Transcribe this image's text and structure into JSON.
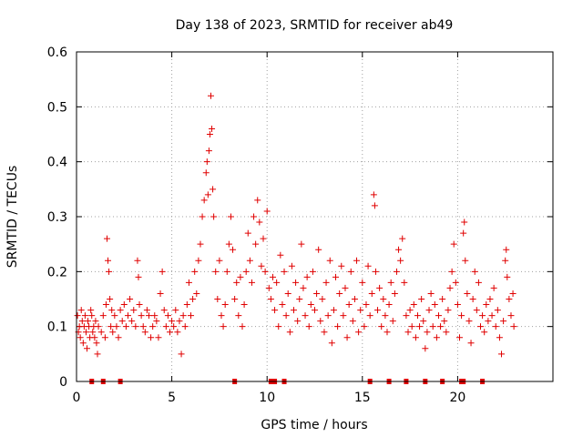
{
  "chart_data": {
    "type": "scatter",
    "title": "Day 138 of 2023, SRMTID for receiver ab49",
    "xlabel": "GPS time / hours",
    "ylabel": "SRMTID / TECUs",
    "xlim": [
      0,
      25
    ],
    "ylim": [
      0,
      0.6
    ],
    "xticks": [
      0,
      5,
      10,
      15,
      20
    ],
    "xtick_labels": [
      "0",
      "5",
      "10",
      "15",
      "20"
    ],
    "yticks": [
      0,
      0.1,
      0.2,
      0.3,
      0.4,
      0.5,
      0.6
    ],
    "ytick_labels": [
      "0",
      "0.1",
      "0.2",
      "0.3",
      "0.4",
      "0.5",
      "0.6"
    ],
    "grid": true,
    "marker": "+",
    "color": "#e00000",
    "series": [
      {
        "name": "SRMTID",
        "points": [
          [
            0.05,
            0.12
          ],
          [
            0.1,
            0.09
          ],
          [
            0.15,
            0.1
          ],
          [
            0.2,
            0.08
          ],
          [
            0.25,
            0.13
          ],
          [
            0.3,
            0.11
          ],
          [
            0.35,
            0.07
          ],
          [
            0.4,
            0.1
          ],
          [
            0.45,
            0.12
          ],
          [
            0.5,
            0.09
          ],
          [
            0.55,
            0.06
          ],
          [
            0.6,
            0.11
          ],
          [
            0.65,
            0.1
          ],
          [
            0.7,
            0.08
          ],
          [
            0.75,
            0.13
          ],
          [
            0.8,
            0.12
          ],
          [
            0.85,
            0.09
          ],
          [
            0.9,
            0.1
          ],
          [
            0.95,
            0.08
          ],
          [
            1.0,
            0.11
          ],
          [
            1.05,
            0.07
          ],
          [
            1.1,
            0.05
          ],
          [
            1.15,
            0.1
          ],
          [
            1.3,
            0.09
          ],
          [
            1.4,
            0.12
          ],
          [
            1.5,
            0.08
          ],
          [
            1.55,
            0.14
          ],
          [
            1.6,
            0.26
          ],
          [
            1.65,
            0.22
          ],
          [
            1.7,
            0.2
          ],
          [
            1.75,
            0.15
          ],
          [
            1.8,
            0.1
          ],
          [
            1.85,
            0.13
          ],
          [
            1.9,
            0.09
          ],
          [
            2.0,
            0.12
          ],
          [
            2.1,
            0.1
          ],
          [
            2.2,
            0.08
          ],
          [
            2.3,
            0.13
          ],
          [
            2.4,
            0.11
          ],
          [
            2.5,
            0.14
          ],
          [
            2.6,
            0.1
          ],
          [
            2.7,
            0.12
          ],
          [
            2.8,
            0.15
          ],
          [
            2.9,
            0.11
          ],
          [
            3.0,
            0.13
          ],
          [
            3.1,
            0.1
          ],
          [
            3.2,
            0.22
          ],
          [
            3.25,
            0.19
          ],
          [
            3.3,
            0.14
          ],
          [
            3.4,
            0.12
          ],
          [
            3.5,
            0.1
          ],
          [
            3.6,
            0.09
          ],
          [
            3.7,
            0.13
          ],
          [
            3.8,
            0.12
          ],
          [
            3.9,
            0.08
          ],
          [
            4.0,
            0.1
          ],
          [
            4.1,
            0.12
          ],
          [
            4.2,
            0.11
          ],
          [
            4.3,
            0.08
          ],
          [
            4.4,
            0.16
          ],
          [
            4.5,
            0.2
          ],
          [
            4.6,
            0.13
          ],
          [
            4.7,
            0.1
          ],
          [
            4.8,
            0.12
          ],
          [
            4.9,
            0.09
          ],
          [
            5.0,
            0.11
          ],
          [
            5.1,
            0.1
          ],
          [
            5.2,
            0.13
          ],
          [
            5.3,
            0.09
          ],
          [
            5.4,
            0.11
          ],
          [
            5.5,
            0.05
          ],
          [
            5.6,
            0.12
          ],
          [
            5.7,
            0.1
          ],
          [
            5.8,
            0.14
          ],
          [
            5.9,
            0.18
          ],
          [
            6.0,
            0.12
          ],
          [
            6.1,
            0.15
          ],
          [
            6.2,
            0.2
          ],
          [
            6.3,
            0.16
          ],
          [
            6.4,
            0.22
          ],
          [
            6.5,
            0.25
          ],
          [
            6.6,
            0.3
          ],
          [
            6.7,
            0.33
          ],
          [
            6.8,
            0.38
          ],
          [
            6.85,
            0.4
          ],
          [
            6.9,
            0.34
          ],
          [
            6.95,
            0.42
          ],
          [
            7.0,
            0.45
          ],
          [
            7.05,
            0.52
          ],
          [
            7.1,
            0.46
          ],
          [
            7.15,
            0.35
          ],
          [
            7.2,
            0.3
          ],
          [
            7.3,
            0.2
          ],
          [
            7.4,
            0.15
          ],
          [
            7.5,
            0.22
          ],
          [
            7.6,
            0.12
          ],
          [
            7.7,
            0.1
          ],
          [
            7.8,
            0.14
          ],
          [
            7.9,
            0.2
          ],
          [
            8.0,
            0.25
          ],
          [
            8.1,
            0.3
          ],
          [
            8.2,
            0.24
          ],
          [
            8.3,
            0.15
          ],
          [
            8.4,
            0.18
          ],
          [
            8.5,
            0.12
          ],
          [
            8.6,
            0.19
          ],
          [
            8.7,
            0.1
          ],
          [
            8.8,
            0.14
          ],
          [
            8.9,
            0.2
          ],
          [
            9.0,
            0.27
          ],
          [
            9.1,
            0.22
          ],
          [
            9.2,
            0.18
          ],
          [
            9.3,
            0.3
          ],
          [
            9.4,
            0.25
          ],
          [
            9.5,
            0.33
          ],
          [
            9.6,
            0.29
          ],
          [
            9.7,
            0.21
          ],
          [
            9.8,
            0.26
          ],
          [
            9.9,
            0.2
          ],
          [
            10.0,
            0.31
          ],
          [
            10.1,
            0.17
          ],
          [
            10.2,
            0.15
          ],
          [
            10.3,
            0.19
          ],
          [
            10.4,
            0.13
          ],
          [
            10.5,
            0.18
          ],
          [
            10.6,
            0.1
          ],
          [
            10.7,
            0.23
          ],
          [
            10.8,
            0.14
          ],
          [
            10.9,
            0.2
          ],
          [
            11.0,
            0.12
          ],
          [
            11.1,
            0.16
          ],
          [
            11.2,
            0.09
          ],
          [
            11.3,
            0.21
          ],
          [
            11.4,
            0.13
          ],
          [
            11.5,
            0.18
          ],
          [
            11.6,
            0.11
          ],
          [
            11.7,
            0.15
          ],
          [
            11.8,
            0.25
          ],
          [
            11.9,
            0.17
          ],
          [
            12.0,
            0.12
          ],
          [
            12.1,
            0.19
          ],
          [
            12.2,
            0.1
          ],
          [
            12.3,
            0.14
          ],
          [
            12.4,
            0.2
          ],
          [
            12.5,
            0.13
          ],
          [
            12.6,
            0.16
          ],
          [
            12.7,
            0.24
          ],
          [
            12.8,
            0.11
          ],
          [
            12.9,
            0.15
          ],
          [
            13.0,
            0.09
          ],
          [
            13.1,
            0.18
          ],
          [
            13.2,
            0.12
          ],
          [
            13.3,
            0.22
          ],
          [
            13.4,
            0.07
          ],
          [
            13.5,
            0.13
          ],
          [
            13.6,
            0.19
          ],
          [
            13.7,
            0.1
          ],
          [
            13.8,
            0.16
          ],
          [
            13.9,
            0.21
          ],
          [
            14.0,
            0.12
          ],
          [
            14.1,
            0.17
          ],
          [
            14.2,
            0.08
          ],
          [
            14.3,
            0.14
          ],
          [
            14.4,
            0.2
          ],
          [
            14.5,
            0.11
          ],
          [
            14.6,
            0.15
          ],
          [
            14.7,
            0.22
          ],
          [
            14.8,
            0.09
          ],
          [
            14.9,
            0.13
          ],
          [
            15.0,
            0.18
          ],
          [
            15.1,
            0.1
          ],
          [
            15.2,
            0.14
          ],
          [
            15.3,
            0.21
          ],
          [
            15.4,
            0.12
          ],
          [
            15.5,
            0.16
          ],
          [
            15.6,
            0.34
          ],
          [
            15.65,
            0.32
          ],
          [
            15.7,
            0.2
          ],
          [
            15.8,
            0.13
          ],
          [
            15.9,
            0.17
          ],
          [
            16.0,
            0.1
          ],
          [
            16.1,
            0.15
          ],
          [
            16.2,
            0.12
          ],
          [
            16.3,
            0.09
          ],
          [
            16.4,
            0.14
          ],
          [
            16.5,
            0.18
          ],
          [
            16.6,
            0.11
          ],
          [
            16.7,
            0.16
          ],
          [
            16.8,
            0.2
          ],
          [
            16.9,
            0.24
          ],
          [
            17.0,
            0.22
          ],
          [
            17.1,
            0.26
          ],
          [
            17.2,
            0.18
          ],
          [
            17.3,
            0.12
          ],
          [
            17.4,
            0.09
          ],
          [
            17.5,
            0.13
          ],
          [
            17.6,
            0.1
          ],
          [
            17.7,
            0.14
          ],
          [
            17.8,
            0.08
          ],
          [
            17.9,
            0.12
          ],
          [
            18.0,
            0.1
          ],
          [
            18.1,
            0.15
          ],
          [
            18.2,
            0.11
          ],
          [
            18.3,
            0.06
          ],
          [
            18.4,
            0.09
          ],
          [
            18.5,
            0.13
          ],
          [
            18.6,
            0.16
          ],
          [
            18.7,
            0.1
          ],
          [
            18.8,
            0.14
          ],
          [
            18.9,
            0.08
          ],
          [
            19.0,
            0.12
          ],
          [
            19.1,
            0.1
          ],
          [
            19.2,
            0.15
          ],
          [
            19.3,
            0.11
          ],
          [
            19.4,
            0.09
          ],
          [
            19.5,
            0.13
          ],
          [
            19.6,
            0.17
          ],
          [
            19.7,
            0.2
          ],
          [
            19.8,
            0.25
          ],
          [
            19.9,
            0.18
          ],
          [
            20.0,
            0.14
          ],
          [
            20.1,
            0.08
          ],
          [
            20.2,
            0.12
          ],
          [
            20.3,
            0.27
          ],
          [
            20.35,
            0.29
          ],
          [
            20.4,
            0.22
          ],
          [
            20.5,
            0.16
          ],
          [
            20.6,
            0.11
          ],
          [
            20.7,
            0.07
          ],
          [
            20.8,
            0.15
          ],
          [
            20.9,
            0.2
          ],
          [
            21.0,
            0.13
          ],
          [
            21.1,
            0.18
          ],
          [
            21.2,
            0.1
          ],
          [
            21.3,
            0.12
          ],
          [
            21.4,
            0.09
          ],
          [
            21.5,
            0.14
          ],
          [
            21.6,
            0.11
          ],
          [
            21.7,
            0.15
          ],
          [
            21.8,
            0.12
          ],
          [
            21.9,
            0.17
          ],
          [
            22.0,
            0.1
          ],
          [
            22.1,
            0.13
          ],
          [
            22.2,
            0.08
          ],
          [
            22.3,
            0.05
          ],
          [
            22.4,
            0.11
          ],
          [
            22.5,
            0.22
          ],
          [
            22.55,
            0.24
          ],
          [
            22.6,
            0.19
          ],
          [
            22.7,
            0.15
          ],
          [
            22.8,
            0.12
          ],
          [
            22.9,
            0.16
          ],
          [
            22.95,
            0.1
          ]
        ]
      },
      {
        "name": "gaps",
        "points": [
          [
            0.8,
            0
          ],
          [
            1.4,
            0
          ],
          [
            2.3,
            0
          ],
          [
            8.3,
            0
          ],
          [
            10.2,
            0
          ],
          [
            10.4,
            0
          ],
          [
            10.9,
            0
          ],
          [
            15.4,
            0
          ],
          [
            16.4,
            0
          ],
          [
            17.3,
            0
          ],
          [
            18.3,
            0
          ],
          [
            19.2,
            0
          ],
          [
            20.2,
            0
          ],
          [
            20.3,
            0
          ],
          [
            21.3,
            0
          ]
        ]
      }
    ]
  }
}
